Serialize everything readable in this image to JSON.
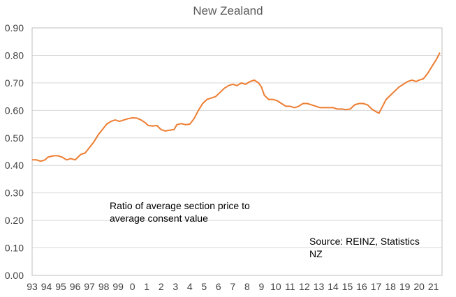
{
  "chart_data": {
    "type": "line",
    "title": "New Zealand",
    "xlabel": "",
    "ylabel": "",
    "x_tick_labels": [
      "93",
      "94",
      "95",
      "96",
      "97",
      "98",
      "99",
      "0",
      "1",
      "2",
      "3",
      "4",
      "5",
      "6",
      "7",
      "8",
      "9",
      "10",
      "11",
      "12",
      "13",
      "14",
      "15",
      "16",
      "17",
      "18",
      "19",
      "20",
      "21"
    ],
    "y_tick_labels": [
      "0.00",
      "0.10",
      "0.20",
      "0.30",
      "0.40",
      "0.50",
      "0.60",
      "0.70",
      "0.80",
      "0.90"
    ],
    "ylim": [
      0,
      0.9
    ],
    "xlim": [
      1993,
      2021.6
    ],
    "grid": "horizontal",
    "legend": "none",
    "series": [
      {
        "color": "#ED7D31",
        "points": [
          [
            1993.0,
            0.42
          ],
          [
            1993.3,
            0.42
          ],
          [
            1993.6,
            0.415
          ],
          [
            1993.9,
            0.42
          ],
          [
            1994.1,
            0.43
          ],
          [
            1994.5,
            0.435
          ],
          [
            1994.8,
            0.435
          ],
          [
            1995.1,
            0.43
          ],
          [
            1995.4,
            0.42
          ],
          [
            1995.7,
            0.425
          ],
          [
            1996.0,
            0.42
          ],
          [
            1996.2,
            0.43
          ],
          [
            1996.4,
            0.44
          ],
          [
            1996.7,
            0.445
          ],
          [
            1997.0,
            0.465
          ],
          [
            1997.3,
            0.485
          ],
          [
            1997.6,
            0.51
          ],
          [
            1997.9,
            0.53
          ],
          [
            1998.2,
            0.55
          ],
          [
            1998.5,
            0.56
          ],
          [
            1998.8,
            0.565
          ],
          [
            1999.1,
            0.56
          ],
          [
            1999.4,
            0.565
          ],
          [
            1999.7,
            0.57
          ],
          [
            2000.0,
            0.573
          ],
          [
            2000.3,
            0.572
          ],
          [
            2000.6,
            0.565
          ],
          [
            2000.9,
            0.555
          ],
          [
            2001.1,
            0.545
          ],
          [
            2001.4,
            0.543
          ],
          [
            2001.7,
            0.545
          ],
          [
            2002.0,
            0.53
          ],
          [
            2002.3,
            0.525
          ],
          [
            2002.6,
            0.528
          ],
          [
            2002.9,
            0.53
          ],
          [
            2003.1,
            0.548
          ],
          [
            2003.4,
            0.552
          ],
          [
            2003.7,
            0.548
          ],
          [
            2004.0,
            0.55
          ],
          [
            2004.3,
            0.57
          ],
          [
            2004.6,
            0.6
          ],
          [
            2004.9,
            0.625
          ],
          [
            2005.2,
            0.64
          ],
          [
            2005.5,
            0.645
          ],
          [
            2005.8,
            0.65
          ],
          [
            2006.1,
            0.665
          ],
          [
            2006.4,
            0.68
          ],
          [
            2006.7,
            0.69
          ],
          [
            2007.0,
            0.695
          ],
          [
            2007.3,
            0.69
          ],
          [
            2007.6,
            0.7
          ],
          [
            2007.9,
            0.695
          ],
          [
            2008.2,
            0.705
          ],
          [
            2008.5,
            0.71
          ],
          [
            2008.8,
            0.7
          ],
          [
            2009.0,
            0.685
          ],
          [
            2009.2,
            0.655
          ],
          [
            2009.5,
            0.64
          ],
          [
            2009.8,
            0.64
          ],
          [
            2010.1,
            0.635
          ],
          [
            2010.4,
            0.625
          ],
          [
            2010.7,
            0.615
          ],
          [
            2011.0,
            0.615
          ],
          [
            2011.3,
            0.61
          ],
          [
            2011.6,
            0.615
          ],
          [
            2011.9,
            0.625
          ],
          [
            2012.2,
            0.625
          ],
          [
            2012.5,
            0.62
          ],
          [
            2012.8,
            0.615
          ],
          [
            2013.1,
            0.61
          ],
          [
            2013.4,
            0.61
          ],
          [
            2013.7,
            0.61
          ],
          [
            2014.0,
            0.61
          ],
          [
            2014.3,
            0.605
          ],
          [
            2014.6,
            0.605
          ],
          [
            2014.9,
            0.603
          ],
          [
            2015.2,
            0.605
          ],
          [
            2015.5,
            0.62
          ],
          [
            2015.8,
            0.625
          ],
          [
            2016.1,
            0.625
          ],
          [
            2016.4,
            0.62
          ],
          [
            2016.7,
            0.605
          ],
          [
            2017.0,
            0.595
          ],
          [
            2017.2,
            0.59
          ],
          [
            2017.4,
            0.61
          ],
          [
            2017.7,
            0.64
          ],
          [
            2018.0,
            0.655
          ],
          [
            2018.3,
            0.67
          ],
          [
            2018.6,
            0.685
          ],
          [
            2018.9,
            0.695
          ],
          [
            2019.2,
            0.705
          ],
          [
            2019.5,
            0.71
          ],
          [
            2019.8,
            0.705
          ],
          [
            2020.0,
            0.71
          ],
          [
            2020.3,
            0.715
          ],
          [
            2020.6,
            0.735
          ],
          [
            2020.9,
            0.76
          ],
          [
            2021.2,
            0.785
          ],
          [
            2021.45,
            0.81
          ]
        ]
      }
    ],
    "annotations": [
      {
        "key": "ratio",
        "lines": [
          "Ratio of average section price to",
          "average consent value"
        ]
      },
      {
        "key": "source",
        "lines": [
          "Source: REINZ, Statistics",
          "NZ"
        ]
      }
    ]
  },
  "annotation_ratio": {
    "line1": "Ratio of average section price to",
    "line2": "average consent value"
  },
  "annotation_source": {
    "line1": "Source: REINZ, Statistics",
    "line2": "NZ"
  }
}
